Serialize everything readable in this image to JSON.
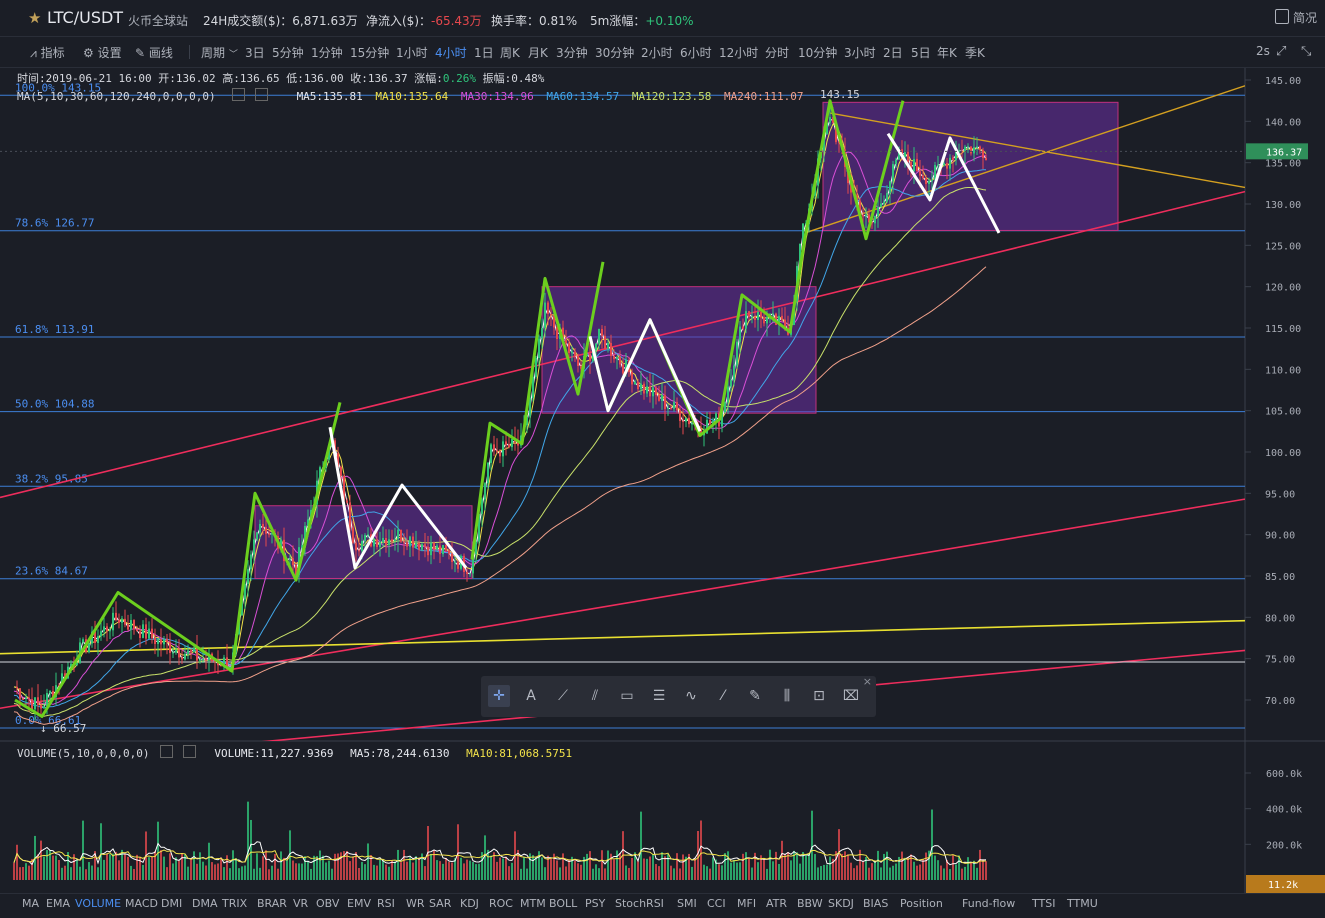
{
  "header": {
    "pair": "LTC/USDT",
    "site": "火币全球站",
    "volume_label": "24H成交额($)：",
    "volume_value": "6,871.63万",
    "inflow_label": "净流入($)：",
    "inflow_value": "-65.43万",
    "turnover_label": "换手率：",
    "turnover_value": "0.81%",
    "change5m_label": "5m涨幅：",
    "change5m_value": "+0.10%",
    "simple_label": "简况"
  },
  "toolbar": {
    "indicator_label": "指标",
    "settings_label": "设置",
    "draw_label": "画线",
    "period_label": "周期",
    "periods": [
      "3日",
      "5分钟",
      "1分钟",
      "15分钟",
      "1小时",
      "4小时",
      "1日",
      "周K",
      "月K",
      "3分钟",
      "30分钟",
      "2小时",
      "6小时",
      "12小时",
      "分时",
      "10分钟",
      "3小时",
      "2日",
      "5日",
      "年K",
      "季K"
    ],
    "active_period": "4小时",
    "interval_label": "2s"
  },
  "ohlc": {
    "time_label": "时间:",
    "time": "2019-06-21 16:00",
    "open_label": "开:",
    "open": "136.02",
    "high_label": "高:",
    "high": "136.65",
    "low_label": "低:",
    "low": "136.00",
    "close_label": "收:",
    "close": "136.37",
    "change_label": "涨幅:",
    "change": "0.26%",
    "amp_label": "振幅:",
    "amp": "0.48%"
  },
  "ma_line": {
    "params": "MA(5,10,30,60,120,240,0,0,0,0)",
    "ma5": "MA5:135.81",
    "ma10": "MA10:135.64",
    "ma30": "MA30:134.96",
    "ma60": "MA60:134.57",
    "ma120": "MA120:123.58",
    "ma240": "MA240:111.07"
  },
  "fib_levels": [
    {
      "label": "100.0% 143.15",
      "price": 143.15
    },
    {
      "label": "78.6% 126.77",
      "price": 126.77
    },
    {
      "label": "61.8% 113.91",
      "price": 113.91
    },
    {
      "label": "50.0% 104.88",
      "price": 104.88
    },
    {
      "label": "38.2% 95.85",
      "price": 95.85
    },
    {
      "label": "23.6% 84.67",
      "price": 84.67
    },
    {
      "label": "0.0% 66.61",
      "price": 66.61
    }
  ],
  "low_marker": "66.57",
  "top_marker": "143.15",
  "price_axis": {
    "ticks": [
      "145.00",
      "140.00",
      "135.00",
      "130.00",
      "125.00",
      "120.00",
      "115.00",
      "110.00",
      "105.00",
      "100.00",
      "95.00",
      "90.00",
      "85.00",
      "80.00",
      "75.00",
      "70.00"
    ],
    "values": [
      145,
      140,
      135,
      130,
      125,
      120,
      115,
      110,
      105,
      100,
      95,
      90,
      85,
      80,
      75,
      70
    ],
    "current": "136.37",
    "current_value": 136.37
  },
  "volume_panel": {
    "params": "VOLUME(5,10,0,0,0,0)",
    "volume": "VOLUME:11,227.9369",
    "ma5": "MA5:78,244.6130",
    "ma10": "MA10:81,068.5751",
    "ticks": [
      "600.0k",
      "400.0k",
      "200.0k"
    ],
    "tick_values": [
      600000,
      400000,
      200000
    ],
    "current": "11.2k"
  },
  "indicators": [
    "MA",
    "EMA",
    "VOLUME",
    "MACD",
    "DMI",
    "DMA",
    "TRIX",
    "BRAR",
    "VR",
    "OBV",
    "EMV",
    "RSI",
    "WR",
    "SAR",
    "KDJ",
    "ROC",
    "MTM",
    "BOLL",
    "PSY",
    "StochRSI",
    "SMI",
    "CCI",
    "MFI",
    "ATR",
    "BBW",
    "SKDJ",
    "BIAS",
    "Position",
    "Fund-flow",
    "TTSI",
    "TTMU"
  ],
  "active_indicator": "VOLUME",
  "draw_tools": [
    "crosshair-icon",
    "text-icon",
    "line-icon",
    "brush-icon",
    "rectangle-icon",
    "fib-icon",
    "wave-icon",
    "ruler-icon",
    "pen-icon",
    "pattern-icon",
    "lock-icon",
    "trash-icon"
  ],
  "colors": {
    "up": "#2fc47b",
    "down": "#e5484d",
    "accent": "#4b8ef0",
    "ma5": "#ffffff",
    "ma10": "#f2e24a",
    "ma30": "#d84fd6",
    "ma60": "#41a6e8",
    "ma120": "#c8e06a",
    "ma240": "#f0a08a"
  }
}
